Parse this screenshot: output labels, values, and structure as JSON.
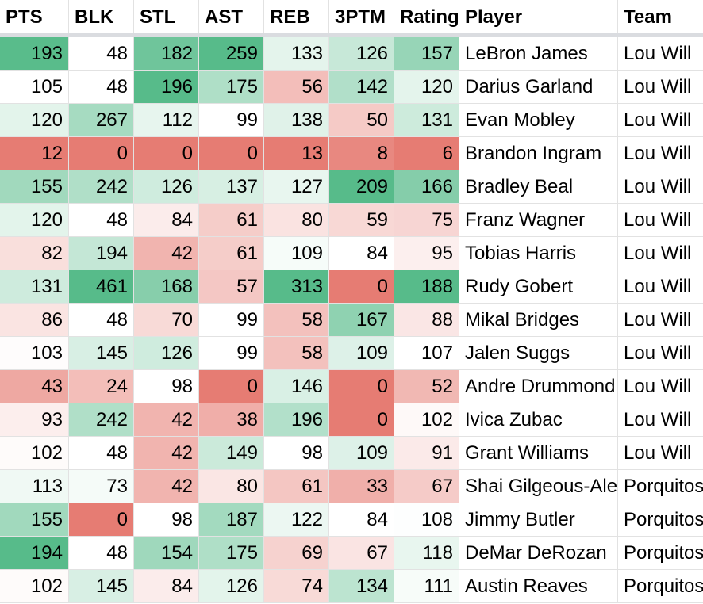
{
  "columns": [
    "PTS",
    "BLK",
    "STL",
    "AST",
    "REB",
    "3PTM",
    "Rating",
    "Player",
    "Team"
  ],
  "rows": [
    {
      "PTS": "193",
      "BLK": "48",
      "STL": "182",
      "AST": "259",
      "REB": "133",
      "3PTM": "126",
      "Rating": "157",
      "Player": "LeBron James",
      "Team": "Lou Will"
    },
    {
      "PTS": "105",
      "BLK": "48",
      "STL": "196",
      "AST": "175",
      "REB": "56",
      "3PTM": "142",
      "Rating": "120",
      "Player": "Darius Garland",
      "Team": "Lou Will"
    },
    {
      "PTS": "120",
      "BLK": "267",
      "STL": "112",
      "AST": "99",
      "REB": "138",
      "3PTM": "50",
      "Rating": "131",
      "Player": "Evan Mobley",
      "Team": "Lou Will"
    },
    {
      "PTS": "12",
      "BLK": "0",
      "STL": "0",
      "AST": "0",
      "REB": "13",
      "3PTM": "8",
      "Rating": "6",
      "Player": "Brandon Ingram",
      "Team": "Lou Will"
    },
    {
      "PTS": "155",
      "BLK": "242",
      "STL": "126",
      "AST": "137",
      "REB": "127",
      "3PTM": "209",
      "Rating": "166",
      "Player": "Bradley Beal",
      "Team": "Lou Will"
    },
    {
      "PTS": "120",
      "BLK": "48",
      "STL": "84",
      "AST": "61",
      "REB": "80",
      "3PTM": "59",
      "Rating": "75",
      "Player": "Franz Wagner",
      "Team": "Lou Will"
    },
    {
      "PTS": "82",
      "BLK": "194",
      "STL": "42",
      "AST": "61",
      "REB": "109",
      "3PTM": "84",
      "Rating": "95",
      "Player": "Tobias Harris",
      "Team": "Lou Will"
    },
    {
      "PTS": "131",
      "BLK": "461",
      "STL": "168",
      "AST": "57",
      "REB": "313",
      "3PTM": "0",
      "Rating": "188",
      "Player": "Rudy Gobert",
      "Team": "Lou Will"
    },
    {
      "PTS": "86",
      "BLK": "48",
      "STL": "70",
      "AST": "99",
      "REB": "58",
      "3PTM": "167",
      "Rating": "88",
      "Player": "Mikal Bridges",
      "Team": "Lou Will"
    },
    {
      "PTS": "103",
      "BLK": "145",
      "STL": "126",
      "AST": "99",
      "REB": "58",
      "3PTM": "109",
      "Rating": "107",
      "Player": "Jalen Suggs",
      "Team": "Lou Will"
    },
    {
      "PTS": "43",
      "BLK": "24",
      "STL": "98",
      "AST": "0",
      "REB": "146",
      "3PTM": "0",
      "Rating": "52",
      "Player": "Andre Drummond",
      "Team": "Lou Will"
    },
    {
      "PTS": "93",
      "BLK": "242",
      "STL": "42",
      "AST": "38",
      "REB": "196",
      "3PTM": "0",
      "Rating": "102",
      "Player": "Ivica Zubac",
      "Team": "Lou Will"
    },
    {
      "PTS": "102",
      "BLK": "48",
      "STL": "42",
      "AST": "149",
      "REB": "98",
      "3PTM": "109",
      "Rating": "91",
      "Player": "Grant Williams",
      "Team": "Lou Will"
    },
    {
      "PTS": "113",
      "BLK": "73",
      "STL": "42",
      "AST": "80",
      "REB": "61",
      "3PTM": "33",
      "Rating": "67",
      "Player": "Shai Gilgeous-Alexander",
      "Team": "Porquitos"
    },
    {
      "PTS": "155",
      "BLK": "0",
      "STL": "98",
      "AST": "187",
      "REB": "122",
      "3PTM": "84",
      "Rating": "108",
      "Player": "Jimmy Butler",
      "Team": "Porquitos"
    },
    {
      "PTS": "194",
      "BLK": "48",
      "STL": "154",
      "AST": "175",
      "REB": "69",
      "3PTM": "67",
      "Rating": "118",
      "Player": "DeMar DeRozan",
      "Team": "Porquitos"
    },
    {
      "PTS": "102",
      "BLK": "145",
      "STL": "84",
      "AST": "126",
      "REB": "74",
      "3PTM": "134",
      "Rating": "111",
      "Player": "Austin Reaves",
      "Team": "Porquitos"
    }
  ],
  "heatmap": {
    "low_color": "#e67c73",
    "mid_color": "#ffffff",
    "high_color": "#57bb8a",
    "columns": [
      "PTS",
      "BLK",
      "STL",
      "AST",
      "REB",
      "3PTM",
      "Rating"
    ]
  }
}
